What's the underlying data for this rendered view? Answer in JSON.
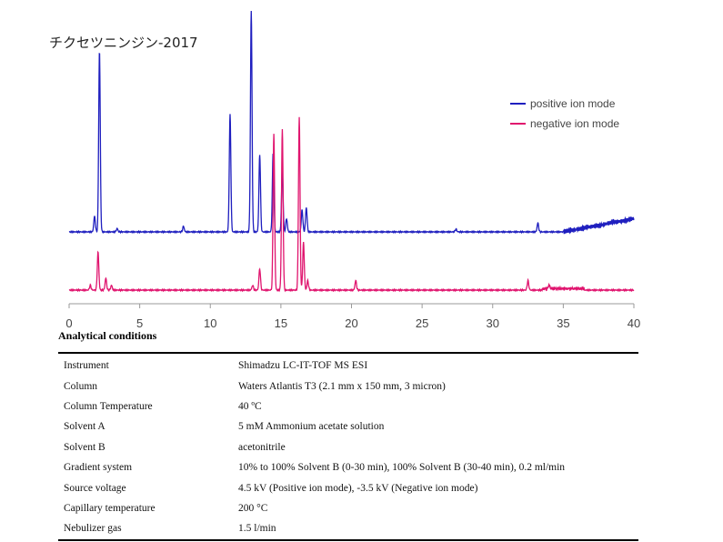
{
  "chart_data": {
    "type": "line",
    "title": "チクセツニンジン-2017",
    "xlim": [
      0,
      40
    ],
    "x_ticks": [
      "0",
      "5",
      "10",
      "15",
      "20",
      "25",
      "30",
      "35",
      "40"
    ],
    "grid": false,
    "legend_position": "top-right",
    "series": [
      {
        "name": "positive ion mode",
        "color": "#1f1fbf",
        "peaks": [
          {
            "rt": 1.8,
            "height": 0.07
          },
          {
            "rt": 2.15,
            "height": 0.82
          },
          {
            "rt": 3.4,
            "height": 0.015
          },
          {
            "rt": 8.1,
            "height": 0.025
          },
          {
            "rt": 11.4,
            "height": 0.53
          },
          {
            "rt": 12.9,
            "height": 1.0
          },
          {
            "rt": 13.5,
            "height": 0.35
          },
          {
            "rt": 14.45,
            "height": 0.36
          },
          {
            "rt": 15.1,
            "height": 0.28
          },
          {
            "rt": 15.4,
            "height": 0.06
          },
          {
            "rt": 16.5,
            "height": 0.1
          },
          {
            "rt": 16.8,
            "height": 0.11
          },
          {
            "rt": 27.4,
            "height": 0.012
          },
          {
            "rt": 33.2,
            "height": 0.04
          }
        ]
      },
      {
        "name": "negative ion mode",
        "color": "#e0146e",
        "peaks": [
          {
            "rt": 1.5,
            "height": 0.02
          },
          {
            "rt": 2.05,
            "height": 0.16
          },
          {
            "rt": 2.6,
            "height": 0.05
          },
          {
            "rt": 3.0,
            "height": 0.02
          },
          {
            "rt": 13.0,
            "height": 0.02
          },
          {
            "rt": 13.5,
            "height": 0.09
          },
          {
            "rt": 14.5,
            "height": 0.66
          },
          {
            "rt": 15.1,
            "height": 0.68
          },
          {
            "rt": 16.3,
            "height": 0.73
          },
          {
            "rt": 16.6,
            "height": 0.2
          },
          {
            "rt": 16.9,
            "height": 0.04
          },
          {
            "rt": 20.3,
            "height": 0.04
          },
          {
            "rt": 32.5,
            "height": 0.04
          },
          {
            "rt": 34.0,
            "height": 0.015
          }
        ]
      }
    ]
  },
  "conditions": {
    "title": "Analytical conditions",
    "rows": [
      {
        "label": "Instrument",
        "value": "Shimadzu LC-IT-TOF MS ESI"
      },
      {
        "label": "Column",
        "value": "Waters Atlantis T3 (2.1 mm x 150 mm, 3 micron)"
      },
      {
        "label": "Column Temperature",
        "value": "40 ºC"
      },
      {
        "label": "Solvent A",
        "value": "5 mM Ammonium acetate solution"
      },
      {
        "label": "Solvent B",
        "value": "acetonitrile"
      },
      {
        "label": "Gradient system",
        "value": "10% to 100% Solvent B (0-30 min), 100% Solvent B (30-40 min), 0.2 ml/min"
      },
      {
        "label": "Source voltage",
        "value": "4.5 kV (Positive ion mode), -3.5 kV (Negative ion mode)"
      },
      {
        "label": "Capillary temperature",
        "value": "200 °C"
      },
      {
        "label": "Nebulizer gas",
        "value": "1.5 l/min"
      }
    ]
  }
}
